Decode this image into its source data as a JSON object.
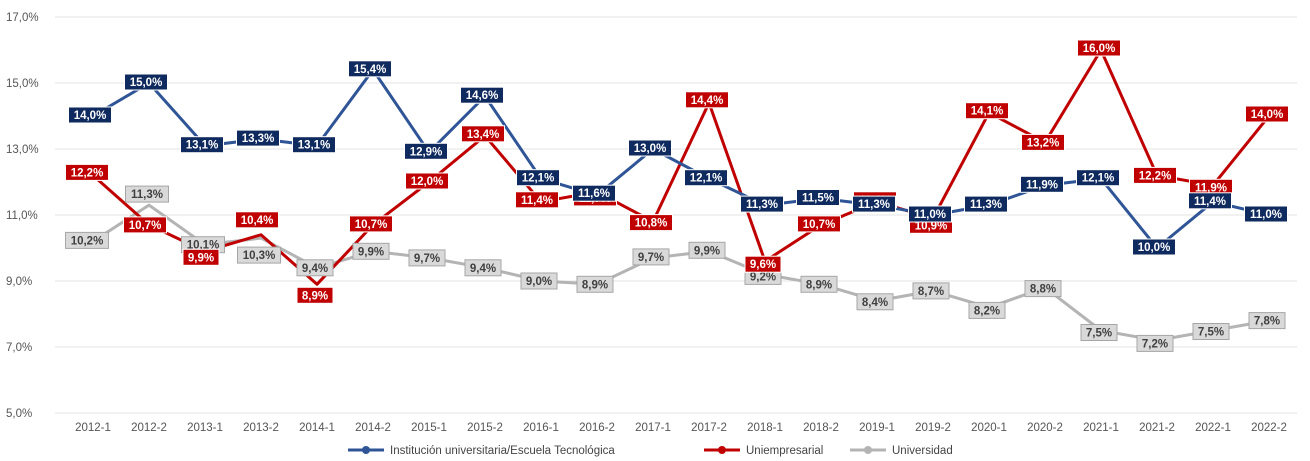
{
  "colors": {
    "series_1": "#2f5597",
    "series_1_label_bg": "#0f2a5e",
    "series_2": "#c00000",
    "series_2_label_bg": "#c00000",
    "series_3": "#b4b4b4",
    "series_3_label_bg": "#d9d9d9",
    "series_3_label_text": "#404040",
    "grid": "#e3e3e3"
  },
  "chart_data": {
    "type": "line",
    "categories": [
      "2012-1",
      "2012-2",
      "2013-1",
      "2013-2",
      "2014-1",
      "2014-2",
      "2015-1",
      "2015-2",
      "2016-1",
      "2016-2",
      "2017-1",
      "2017-2",
      "2018-1",
      "2018-2",
      "2019-1",
      "2019-2",
      "2020-1",
      "2020-2",
      "2021-1",
      "2021-2",
      "2022-1",
      "2022-2"
    ],
    "y_ticks": [
      5.0,
      7.0,
      9.0,
      11.0,
      13.0,
      15.0,
      17.0
    ],
    "y_tick_labels": [
      "5,0%",
      "7,0%",
      "9,0%",
      "11,0%",
      "13,0%",
      "15,0%",
      "17,0%"
    ],
    "ylim": [
      5.0,
      17.0
    ],
    "grid": true,
    "legend_position": "bottom",
    "series": [
      {
        "name": "Institución universitaria/Escuela Tecnológica",
        "values": [
          14.0,
          15.0,
          13.1,
          13.3,
          13.1,
          15.4,
          12.9,
          14.6,
          12.1,
          11.6,
          13.0,
          12.1,
          11.3,
          11.5,
          11.3,
          11.0,
          11.3,
          11.9,
          12.1,
          10.0,
          11.4,
          11.0
        ],
        "labels": [
          "14,0%",
          "15,0%",
          "13,1%",
          "13,3%",
          "13,1%",
          "15,4%",
          "12,9%",
          "14,6%",
          "12,1%",
          "11,6%",
          "13,0%",
          "12,1%",
          "11,3%",
          "11,5%",
          "11,3%",
          "11,0%",
          "11,3%",
          "11,9%",
          "12,1%",
          "10,0%",
          "11,4%",
          "11,0%"
        ]
      },
      {
        "name": "Uniempresarial",
        "values": [
          12.2,
          10.7,
          9.9,
          10.4,
          8.9,
          10.7,
          12.0,
          13.4,
          11.4,
          11.7,
          10.8,
          14.4,
          9.6,
          10.7,
          11.4,
          10.9,
          14.1,
          13.2,
          16.0,
          12.2,
          11.9,
          14.0
        ],
        "labels": [
          "12,2%",
          "10,7%",
          "9,9%",
          "10,4%",
          "8,9%",
          "10,7%",
          "12,0%",
          "13,4%",
          "11,4%",
          "11,7%",
          "10,8%",
          "14,4%",
          "9,6%",
          "10,7%",
          "11,4%",
          "10,9%",
          "14,1%",
          "13,2%",
          "16,0%",
          "12,2%",
          "11,9%",
          "14,0%"
        ]
      },
      {
        "name": "Universidad",
        "values": [
          10.2,
          11.3,
          10.1,
          10.3,
          9.4,
          9.9,
          9.7,
          9.4,
          9.0,
          8.9,
          9.7,
          9.9,
          9.2,
          8.9,
          8.4,
          8.7,
          8.2,
          8.8,
          7.5,
          7.2,
          7.5,
          7.8
        ],
        "labels": [
          "10,2%",
          "11,3%",
          "10,1%",
          "10,3%",
          "9,4%",
          "9,9%",
          "9,7%",
          "9,4%",
          "9,0%",
          "8,9%",
          "9,7%",
          "9,9%",
          "9,2%",
          "8,9%",
          "8,4%",
          "8,7%",
          "8,2%",
          "8,8%",
          "7,5%",
          "7,2%",
          "7,5%",
          "7,8%"
        ]
      }
    ]
  }
}
